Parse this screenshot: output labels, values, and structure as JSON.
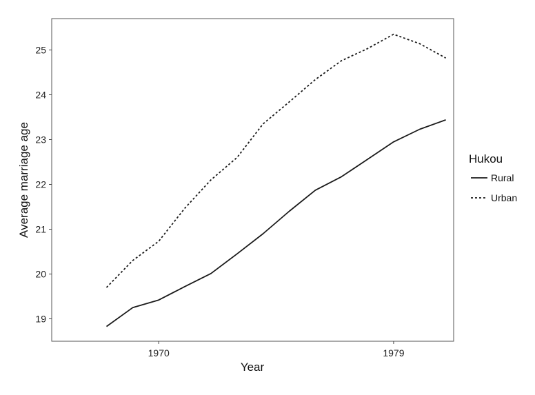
{
  "chart_data": {
    "type": "line",
    "xlabel": "Year",
    "ylabel": "Average marriage age",
    "xlim": [
      1965.9,
      1981.3
    ],
    "ylim": [
      18.5,
      25.7
    ],
    "x_ticks": [
      1970,
      1979
    ],
    "y_ticks": [
      19,
      20,
      21,
      22,
      23,
      24,
      25
    ],
    "grid": false,
    "legend": {
      "title": "Hukou",
      "position": "right"
    },
    "series": [
      {
        "name": "Rural",
        "line_style": "solid",
        "color": "#1a1a1a",
        "x": [
          1968,
          1969,
          1970,
          1971,
          1972,
          1973,
          1974,
          1975,
          1976,
          1977,
          1978,
          1979,
          1980,
          1981
        ],
        "y": [
          18.83,
          19.25,
          19.42,
          19.72,
          20.01,
          20.45,
          20.9,
          21.4,
          21.87,
          22.17,
          22.56,
          22.95,
          23.23,
          23.44
        ]
      },
      {
        "name": "Urban",
        "line_style": "dotted",
        "color": "#1a1a1a",
        "x": [
          1968,
          1969,
          1970,
          1971,
          1972,
          1973,
          1974,
          1975,
          1976,
          1977,
          1978,
          1979,
          1980,
          1981
        ],
        "y": [
          19.7,
          20.3,
          20.73,
          21.47,
          22.1,
          22.6,
          23.35,
          23.84,
          24.34,
          24.76,
          25.03,
          25.35,
          25.14,
          24.82
        ]
      }
    ]
  }
}
